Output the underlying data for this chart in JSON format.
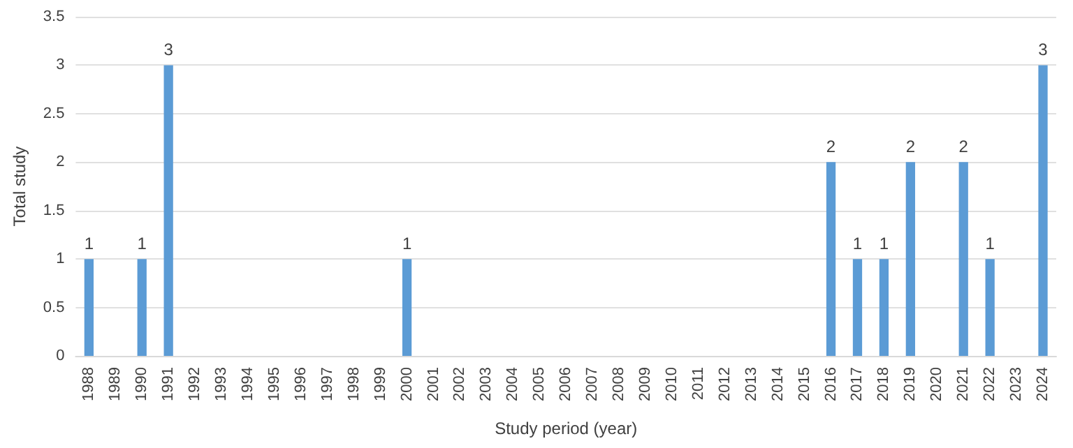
{
  "chart_data": {
    "type": "bar",
    "xlabel": "Study period (year)",
    "ylabel": "Total study",
    "categories": [
      "1988",
      "1989",
      "1990",
      "1991",
      "1992",
      "1993",
      "1994",
      "1995",
      "1996",
      "1997",
      "1998",
      "1999",
      "2000",
      "2001",
      "2002",
      "2003",
      "2004",
      "2005",
      "2006",
      "2007",
      "2008",
      "2009",
      "2010",
      "2011",
      "2012",
      "2013",
      "2014",
      "2015",
      "2016",
      "2017",
      "2018",
      "2019",
      "2020",
      "2021",
      "2022",
      "2023",
      "2024"
    ],
    "values": [
      1,
      0,
      1,
      3,
      0,
      0,
      0,
      0,
      0,
      0,
      0,
      0,
      1,
      0,
      0,
      0,
      0,
      0,
      0,
      0,
      0,
      0,
      0,
      0,
      0,
      0,
      0,
      0,
      2,
      1,
      1,
      2,
      0,
      2,
      1,
      0,
      3
    ],
    "value_labels": [
      "1",
      null,
      "1",
      "3",
      null,
      null,
      null,
      null,
      null,
      null,
      null,
      null,
      "1",
      null,
      null,
      null,
      null,
      null,
      null,
      null,
      null,
      null,
      null,
      null,
      null,
      null,
      null,
      null,
      "2",
      "1",
      "1",
      "2",
      null,
      "2",
      "1",
      null,
      "3"
    ],
    "color": "#5b9bd5",
    "ylim": [
      0,
      3.5
    ],
    "yticks": [
      0,
      0.5,
      1,
      1.5,
      2,
      2.5,
      3,
      3.5
    ],
    "grid": "y"
  }
}
